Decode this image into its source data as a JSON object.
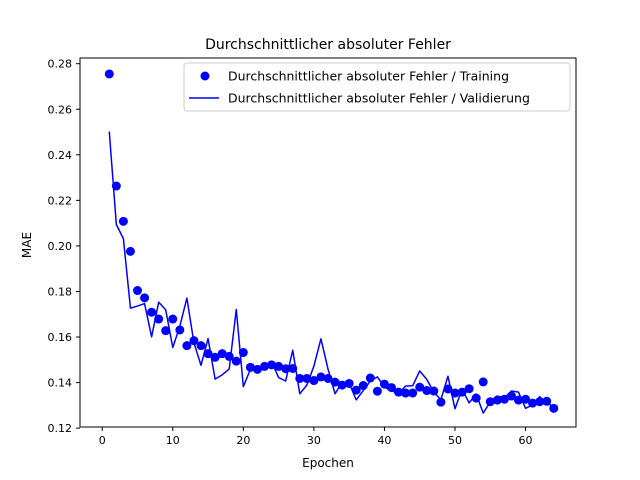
{
  "chart_data": {
    "type": "line",
    "title": "Durchschnittlicher absoluter Fehler",
    "xlabel": "Epochen",
    "ylabel": "MAE",
    "xlim": [
      -3.15,
      67.15
    ],
    "ylim": [
      0.1205,
      0.2825
    ],
    "x_ticks": [
      "0",
      "10",
      "20",
      "30",
      "40",
      "50",
      "60"
    ],
    "x_tick_values": [
      0,
      10,
      20,
      30,
      40,
      50,
      60
    ],
    "y_ticks": [
      "0.12",
      "0.14",
      "0.16",
      "0.18",
      "0.20",
      "0.22",
      "0.24",
      "0.26",
      "0.28"
    ],
    "y_tick_values": [
      0.12,
      0.14,
      0.16,
      0.18,
      0.2,
      0.22,
      0.24,
      0.26,
      0.28
    ],
    "grid": false,
    "legend_position": "top-right",
    "series": [
      {
        "name": "Durchschnittlicher absoluter Fehler / Training",
        "style": "markers",
        "color": "#0000ff",
        "x": [
          1,
          2,
          3,
          4,
          5,
          6,
          7,
          8,
          9,
          10,
          11,
          12,
          13,
          14,
          15,
          16,
          17,
          18,
          19,
          20,
          21,
          22,
          23,
          24,
          25,
          26,
          27,
          28,
          29,
          30,
          31,
          32,
          33,
          34,
          35,
          36,
          37,
          38,
          39,
          40,
          41,
          42,
          43,
          44,
          45,
          46,
          47,
          48,
          49,
          50,
          51,
          52,
          53,
          54,
          55,
          56,
          57,
          58,
          59,
          60,
          61,
          62,
          63,
          64
        ],
        "values": [
          0.2755,
          0.2263,
          0.2108,
          0.1976,
          0.1804,
          0.1772,
          0.1709,
          0.1679,
          0.1628,
          0.1679,
          0.1631,
          0.1562,
          0.1584,
          0.1562,
          0.1527,
          0.1511,
          0.1527,
          0.1515,
          0.1494,
          0.1532,
          0.1467,
          0.1458,
          0.1471,
          0.1478,
          0.1471,
          0.1461,
          0.1462,
          0.1418,
          0.1418,
          0.1409,
          0.1425,
          0.1418,
          0.1402,
          0.1389,
          0.1396,
          0.1367,
          0.1387,
          0.142,
          0.1362,
          0.1393,
          0.1378,
          0.1358,
          0.1354,
          0.1354,
          0.138,
          0.1365,
          0.1363,
          0.1314,
          0.1372,
          0.1354,
          0.1358,
          0.1373,
          0.1332,
          0.1403,
          0.1316,
          0.1323,
          0.1327,
          0.1341,
          0.1323,
          0.1327,
          0.131,
          0.1316,
          0.1318,
          0.1287
        ]
      },
      {
        "name": "Durchschnittlicher absoluter Fehler / Validierung",
        "style": "line",
        "color": "#0000ff",
        "x": [
          1,
          2,
          3,
          4,
          5,
          6,
          7,
          8,
          9,
          10,
          11,
          12,
          13,
          14,
          15,
          16,
          17,
          18,
          19,
          20,
          21,
          22,
          23,
          24,
          25,
          26,
          27,
          28,
          29,
          30,
          31,
          32,
          33,
          34,
          35,
          36,
          37,
          38,
          39,
          40,
          41,
          42,
          43,
          44,
          45,
          46,
          47,
          48,
          49,
          50,
          51,
          52,
          53,
          54,
          55,
          56,
          57,
          58,
          59,
          60,
          61,
          62,
          63,
          64
        ],
        "values": [
          0.2502,
          0.2094,
          0.2032,
          0.1727,
          0.1736,
          0.1747,
          0.1601,
          0.1753,
          0.1719,
          0.1554,
          0.1647,
          0.1771,
          0.1574,
          0.1476,
          0.1593,
          0.1415,
          0.1434,
          0.146,
          0.1721,
          0.1382,
          0.1458,
          0.1467,
          0.1465,
          0.1492,
          0.1422,
          0.1407,
          0.1542,
          0.1351,
          0.1389,
          0.1472,
          0.1592,
          0.146,
          0.1351,
          0.1402,
          0.1398,
          0.1324,
          0.1365,
          0.1407,
          0.1425,
          0.138,
          0.1365,
          0.1351,
          0.1385,
          0.1386,
          0.1451,
          0.1414,
          0.1358,
          0.1325,
          0.1428,
          0.1285,
          0.1371,
          0.1311,
          0.135,
          0.1266,
          0.1316,
          0.1341,
          0.1332,
          0.1363,
          0.1358,
          0.1287,
          0.1302,
          0.1338,
          0.131,
          0.1295
        ]
      }
    ]
  }
}
